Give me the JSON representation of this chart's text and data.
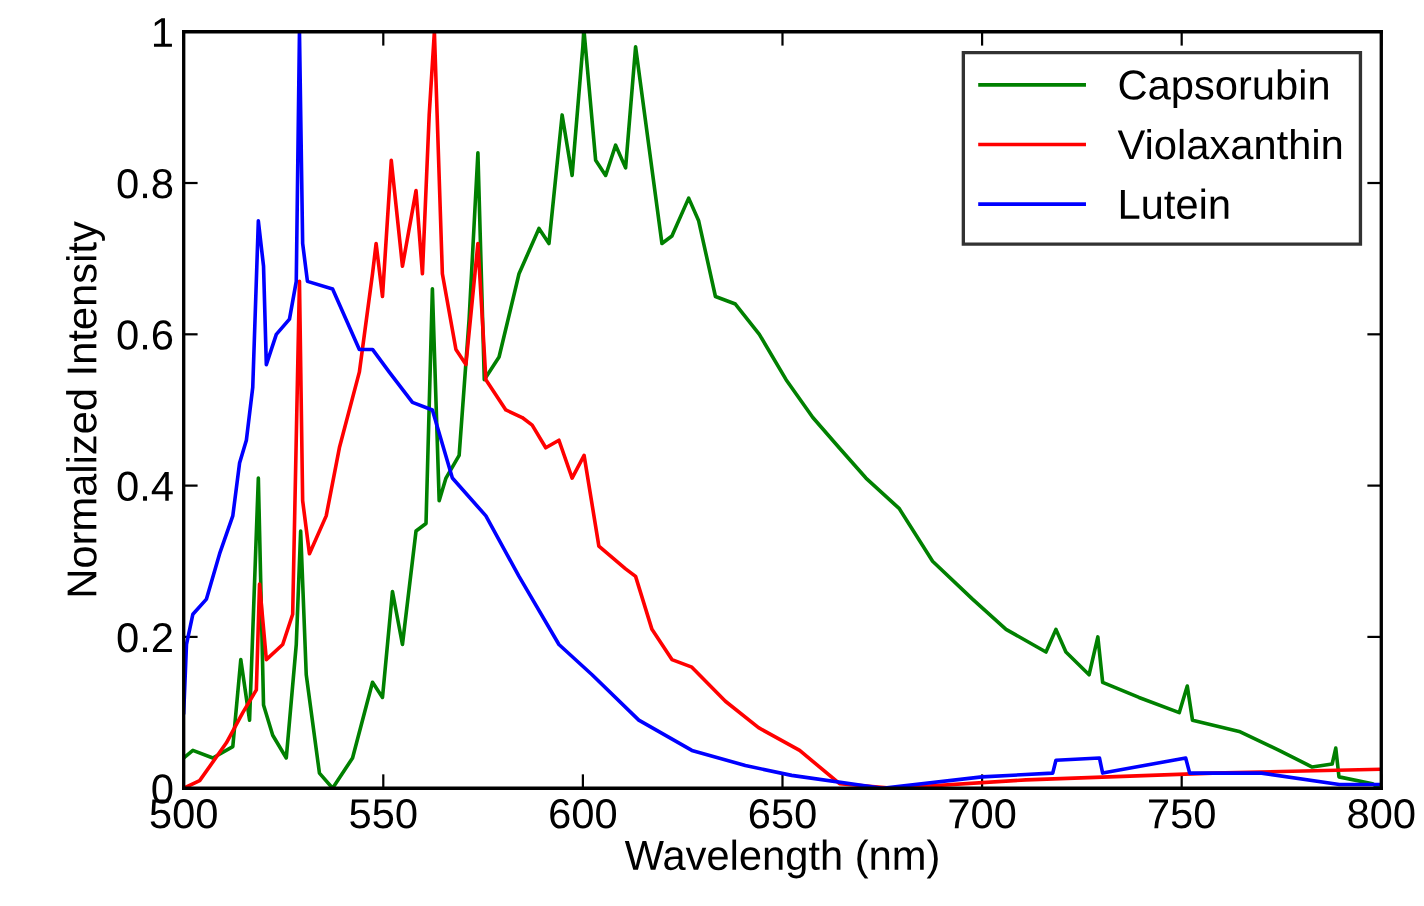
{
  "chart_data": {
    "type": "line",
    "xlabel": "Wavelength (nm)",
    "ylabel": "Normalized Intensity",
    "xlim": [
      500,
      800
    ],
    "ylim": [
      0,
      1
    ],
    "xticks": [
      500,
      550,
      600,
      650,
      700,
      750,
      800
    ],
    "yticks": [
      0,
      0.2,
      0.4,
      0.6,
      0.8,
      1
    ],
    "grid": false,
    "legend": "top right",
    "marker": "none",
    "line_style": "solid",
    "series": [
      {
        "name": "Capsorubin",
        "color": "#008000",
        "x": [
          500,
          502.3,
          507.3,
          512.3,
          514.3,
          516.5,
          518.7,
          520,
          522.3,
          525.7,
          528.2,
          529.3,
          530.7,
          534,
          537.3,
          542.3,
          547.3,
          549.8,
          552.3,
          554.8,
          558.2,
          560.7,
          562.3,
          564,
          565.7,
          569,
          571.5,
          573.7,
          575.3,
          579,
          584,
          589,
          591.5,
          594.8,
          597.3,
          600.3,
          603.2,
          605.7,
          608.2,
          610.7,
          613.2,
          616.5,
          619.8,
          622.3,
          626.5,
          629,
          633.2,
          638.2,
          644.2,
          650.9,
          657.6,
          664.2,
          670.9,
          679.2,
          687.6,
          697.6,
          706,
          716,
          718.5,
          721,
          726.8,
          729,
          730.2,
          739.3,
          749.4,
          751.4,
          752.7,
          764.4,
          774.4,
          782.7,
          787.7,
          788.6,
          789.4,
          797.8,
          799.5
        ],
        "values": [
          0.04,
          0.05,
          0.04,
          0.055,
          0.17,
          0.09,
          0.41,
          0.11,
          0.07,
          0.04,
          0.19,
          0.34,
          0.15,
          0.02,
          0.0,
          0.04,
          0.14,
          0.12,
          0.26,
          0.19,
          0.34,
          0.35,
          0.66,
          0.38,
          0.41,
          0.44,
          0.62,
          0.84,
          0.54,
          0.57,
          0.68,
          0.74,
          0.72,
          0.89,
          0.81,
          1.0,
          0.83,
          0.81,
          0.85,
          0.82,
          0.98,
          0.85,
          0.72,
          0.73,
          0.78,
          0.75,
          0.65,
          0.64,
          0.6,
          0.54,
          0.49,
          0.45,
          0.41,
          0.37,
          0.3,
          0.25,
          0.21,
          0.18,
          0.21,
          0.18,
          0.15,
          0.2,
          0.14,
          0.12,
          0.1,
          0.135,
          0.09,
          0.075,
          0.05,
          0.028,
          0.032,
          0.053,
          0.015,
          0.006,
          0.0
        ]
      },
      {
        "name": "Violaxanthin",
        "color": "#ff0000",
        "x": [
          500,
          504,
          510.7,
          514.8,
          518.2,
          519,
          520.7,
          524.8,
          527.3,
          529,
          529.8,
          531.5,
          535.7,
          539,
          544,
          547.3,
          548.2,
          549.8,
          552,
          554.8,
          558.2,
          559.8,
          561.5,
          562.8,
          564.8,
          568.2,
          570.7,
          573.7,
          575.7,
          580.7,
          584.8,
          587.3,
          590.7,
          594,
          597.3,
          600.3,
          604,
          610.7,
          613.2,
          617.3,
          622.3,
          627.3,
          635.7,
          644,
          654.3,
          664.3,
          677.7,
          711,
          757.8,
          799.5
        ],
        "values": [
          0.0,
          0.01,
          0.06,
          0.1,
          0.13,
          0.27,
          0.17,
          0.19,
          0.23,
          0.67,
          0.38,
          0.31,
          0.36,
          0.45,
          0.55,
          0.68,
          0.72,
          0.65,
          0.83,
          0.69,
          0.79,
          0.68,
          0.89,
          1.0,
          0.68,
          0.58,
          0.56,
          0.72,
          0.54,
          0.5,
          0.49,
          0.48,
          0.45,
          0.46,
          0.41,
          0.44,
          0.32,
          0.29,
          0.28,
          0.21,
          0.17,
          0.16,
          0.115,
          0.08,
          0.05,
          0.006,
          0.0,
          0.011,
          0.02,
          0.025
        ]
      },
      {
        "name": "Lutein",
        "color": "#0000ff",
        "x": [
          500,
          500.7,
          502.3,
          505.7,
          509,
          512.3,
          514,
          515.7,
          517.3,
          518.7,
          520,
          520.7,
          523.2,
          526.5,
          528.2,
          529,
          529.8,
          531,
          537.3,
          544,
          547.3,
          551.5,
          557.3,
          562.3,
          567.3,
          575.7,
          584,
          594,
          602.3,
          614,
          627.3,
          640.7,
          652.3,
          675,
          700,
          717.7,
          718.5,
          729.4,
          730.2,
          751,
          752,
          770,
          789.5,
          799.5
        ],
        "values": [
          0.1,
          0.19,
          0.23,
          0.25,
          0.31,
          0.36,
          0.43,
          0.46,
          0.53,
          0.75,
          0.69,
          0.56,
          0.6,
          0.62,
          0.67,
          1.0,
          0.72,
          0.67,
          0.66,
          0.58,
          0.58,
          0.55,
          0.51,
          0.5,
          0.41,
          0.36,
          0.28,
          0.19,
          0.15,
          0.09,
          0.05,
          0.03,
          0.017,
          0.0,
          0.015,
          0.02,
          0.037,
          0.04,
          0.02,
          0.04,
          0.02,
          0.02,
          0.005,
          0.005
        ]
      }
    ]
  }
}
